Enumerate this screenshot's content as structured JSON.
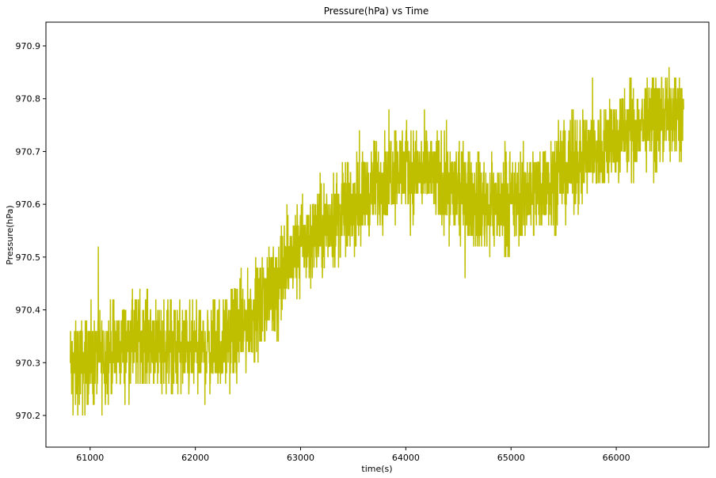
{
  "chart_data": {
    "type": "line",
    "title": "Pressure(hPa) vs Time",
    "xlabel": "time(s)",
    "ylabel": "Pressure(hPa)",
    "xlim": [
      60580,
      66880
    ],
    "ylim": [
      970.14,
      970.945
    ],
    "xticks": [
      61000,
      62000,
      63000,
      64000,
      65000,
      66000
    ],
    "yticks": [
      970.2,
      970.3,
      970.4,
      970.5,
      970.6,
      970.7,
      970.8,
      970.9
    ],
    "grid": false,
    "series": [
      {
        "name": "",
        "color": "#bfbf00",
        "x_range": [
          60810,
          66640
        ],
        "trend_points": [
          {
            "x": 60810,
            "y": 970.29
          },
          {
            "x": 61000,
            "y": 970.3
          },
          {
            "x": 61500,
            "y": 970.35
          },
          {
            "x": 62000,
            "y": 970.32
          },
          {
            "x": 62300,
            "y": 970.34
          },
          {
            "x": 62600,
            "y": 970.4
          },
          {
            "x": 63000,
            "y": 970.52
          },
          {
            "x": 63500,
            "y": 970.6
          },
          {
            "x": 63900,
            "y": 970.67
          },
          {
            "x": 64200,
            "y": 970.66
          },
          {
            "x": 64700,
            "y": 970.6
          },
          {
            "x": 65000,
            "y": 970.6
          },
          {
            "x": 65400,
            "y": 970.65
          },
          {
            "x": 65800,
            "y": 970.7
          },
          {
            "x": 66200,
            "y": 970.75
          },
          {
            "x": 66640,
            "y": 970.77
          }
        ],
        "min": 970.18,
        "max": 970.92,
        "resolution": 0.02
      }
    ]
  }
}
